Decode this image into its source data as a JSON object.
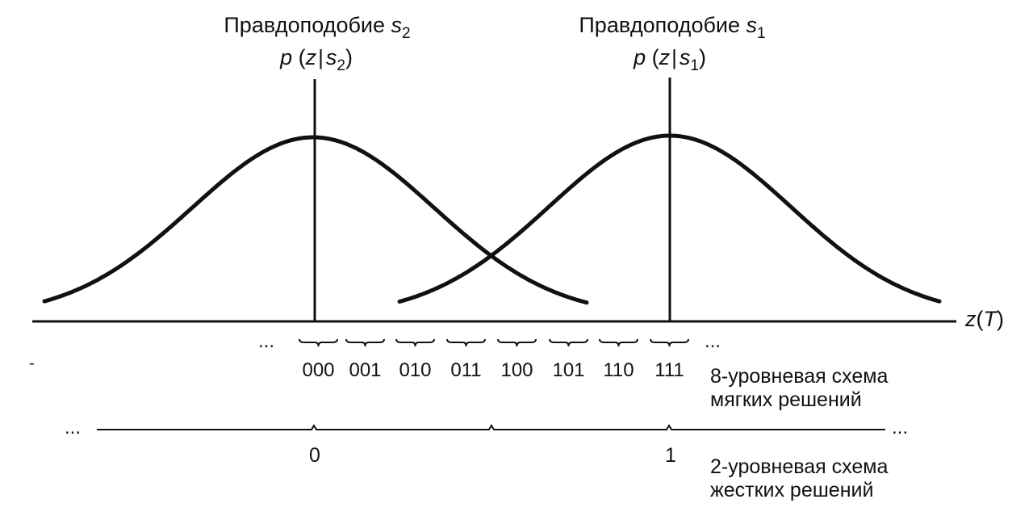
{
  "likelihood_s2": {
    "title_text": "Правдоподобие ",
    "title_var": "s",
    "title_sub": "2",
    "formula_p": "p",
    "formula_open": " (",
    "formula_z": "z",
    "formula_var": "s",
    "formula_sub": "2",
    "formula_close": ")"
  },
  "likelihood_s1": {
    "title_text": "Правдоподобие ",
    "title_var": "s",
    "title_sub": "1",
    "formula_p": "p",
    "formula_open": " (",
    "formula_z": "z",
    "formula_var": "s",
    "formula_sub": "1",
    "formula_close": ")"
  },
  "axis": {
    "label_var": "z",
    "label_open": "(",
    "label_arg": "T",
    "label_close": ")"
  },
  "soft_decision": {
    "codes": [
      "000",
      "001",
      "010",
      "011",
      "100",
      "101",
      "110",
      "111"
    ],
    "ellipsis_left": "...",
    "ellipsis_right": "...",
    "caption_line1": "8-уровневая схема",
    "caption_line2": "мягких решений"
  },
  "hard_decision": {
    "values": [
      "0",
      "1"
    ],
    "ellipsis_left": "...",
    "ellipsis_right": "...",
    "caption_line1": "2-уровневая схема",
    "caption_line2": "жестких решений"
  },
  "stray_mark": "-"
}
